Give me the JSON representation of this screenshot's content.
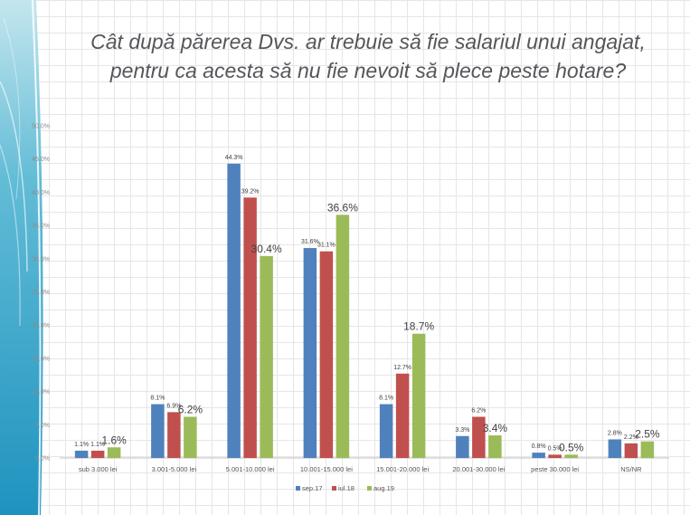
{
  "title_lines": [
    "Cât după părerea Dvs. ar trebuie să fie salariul unui angajat,",
    "pentru ca acesta să nu fie nevoit să plece peste hotare?"
  ],
  "chart_data": {
    "type": "bar",
    "title": "Cât după părerea Dvs. ar trebuie să fie salariul unui angajat, pentru ca acesta să nu fie nevoit să plece peste hotare?",
    "categories": [
      "sub 3.000 lei",
      "3.001-5.000 lei",
      "5.001-10.000 lei",
      "10.001-15.000 lei",
      "15.001-20.000 lei",
      "20.001-30.000 lei",
      "peste 30.000 lei",
      "NS/NR"
    ],
    "series": [
      {
        "name": "sep.17",
        "color": "#4f81bd",
        "values": [
          1.1,
          8.1,
          44.3,
          31.6,
          8.1,
          3.3,
          0.8,
          2.8
        ],
        "labels": [
          "1.1%",
          "8.1%",
          "44.3%",
          "31.6%",
          "8.1%",
          "3.3%",
          "0.8%",
          "2.8%"
        ]
      },
      {
        "name": "iul.18",
        "color": "#c0504d",
        "values": [
          1.1,
          6.9,
          39.2,
          31.1,
          12.7,
          6.2,
          0.5,
          2.2
        ],
        "labels": [
          "1.1%",
          "6.9%",
          "39.2%",
          "31.1%",
          "12.7%",
          "6.2%",
          "0.5%",
          "2.2%"
        ]
      },
      {
        "name": "aug.19",
        "color": "#9bbb59",
        "values": [
          1.6,
          6.2,
          30.4,
          36.6,
          18.7,
          3.4,
          0.5,
          2.5
        ],
        "labels": [
          "1.6%",
          "6.2%",
          "30.4%",
          "36.6%",
          "18.7%",
          "3.4%",
          "0.5%",
          "2.5%"
        ]
      }
    ],
    "ylim": [
      0,
      50
    ],
    "yticks": [
      "0.0%",
      "5.0%",
      "10.0%",
      "15.0%",
      "20.0%",
      "25.0%",
      "30.0%",
      "35.0%",
      "40.0%",
      "45.0%",
      "50.0%"
    ],
    "legend_position": "bottom",
    "xlabel": "",
    "ylabel": ""
  }
}
